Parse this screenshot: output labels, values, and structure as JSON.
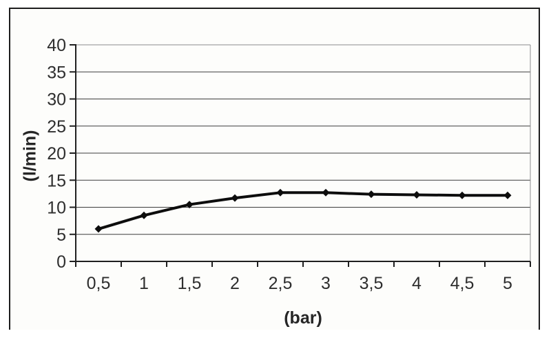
{
  "chart_data": {
    "type": "line",
    "title": "",
    "xlabel": "(bar)",
    "ylabel": "(l/min)",
    "categories": [
      "0,5",
      "1",
      "1,5",
      "2",
      "2,5",
      "3",
      "3,5",
      "4",
      "4,5",
      "5"
    ],
    "x_values": [
      0.5,
      1,
      1.5,
      2,
      2.5,
      3,
      3.5,
      4,
      4.5,
      5
    ],
    "series": [
      {
        "values": [
          6,
          8.5,
          10.5,
          11.7,
          12.7,
          12.7,
          12.4,
          12.3,
          12.2,
          12.2
        ]
      }
    ],
    "ylim": [
      0,
      40
    ],
    "y_ticks": [
      0,
      5,
      10,
      15,
      20,
      25,
      30,
      35,
      40
    ],
    "grid": "horizontal",
    "legend": "none",
    "marker": "diamond",
    "colors": {
      "line": "#0d0d0d",
      "grid": "#3c3c3c",
      "plot_border": "#8c8c8c",
      "axis": "#1f1f1f",
      "text": "#2e2e2e",
      "frame": "#1c1c1c",
      "plot_background": "#fdfdfb"
    }
  }
}
